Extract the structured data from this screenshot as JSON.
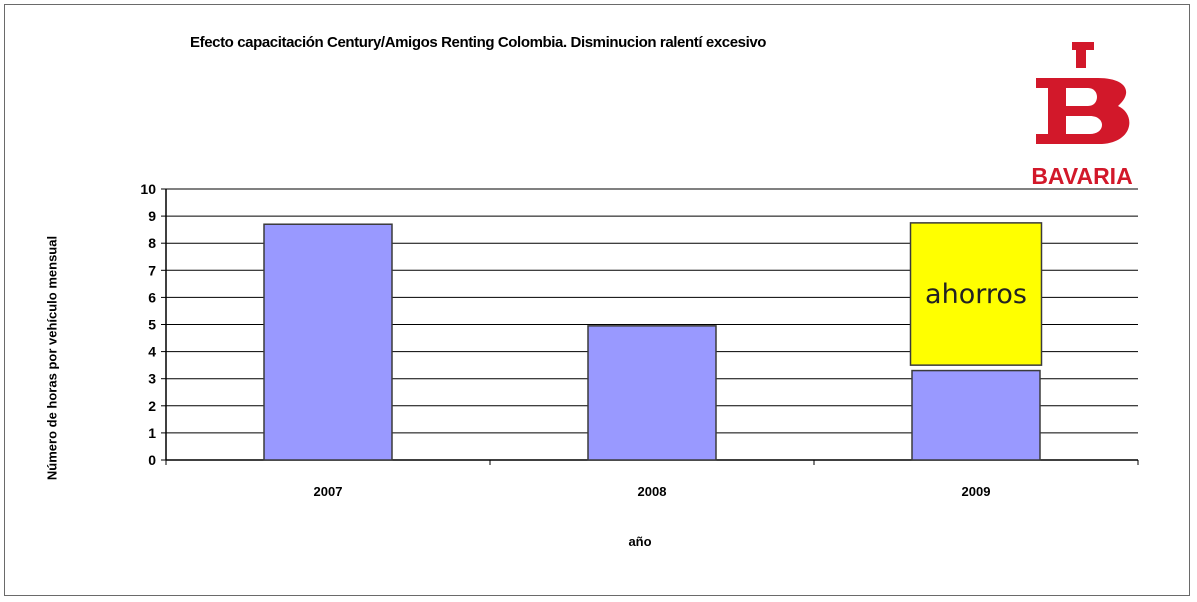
{
  "logo": {
    "text": "BAVARIA",
    "monogram": "B",
    "color": "#d2182a"
  },
  "colors": {
    "bar": "#9999ff",
    "bar_stroke": "#3b3b3b",
    "annotation_fill": "#ffff00",
    "grid": "#000000"
  },
  "chart_data": {
    "type": "bar",
    "title": "Efecto capacitación Century/Amigos Renting Colombia. Disminucion ralentí excesivo",
    "xlabel": "año",
    "ylabel": "Número de horas por vehículo mensual",
    "categories": [
      "2007",
      "2008",
      "2009"
    ],
    "values": [
      8.7,
      4.95,
      3.3
    ],
    "ylim": [
      0,
      10
    ],
    "yticks": [
      0,
      1,
      2,
      3,
      4,
      5,
      6,
      7,
      8,
      9,
      10
    ],
    "grid": true,
    "annotation": {
      "category": "2009",
      "from": 3.5,
      "to": 8.75,
      "label": "ahorros"
    }
  }
}
